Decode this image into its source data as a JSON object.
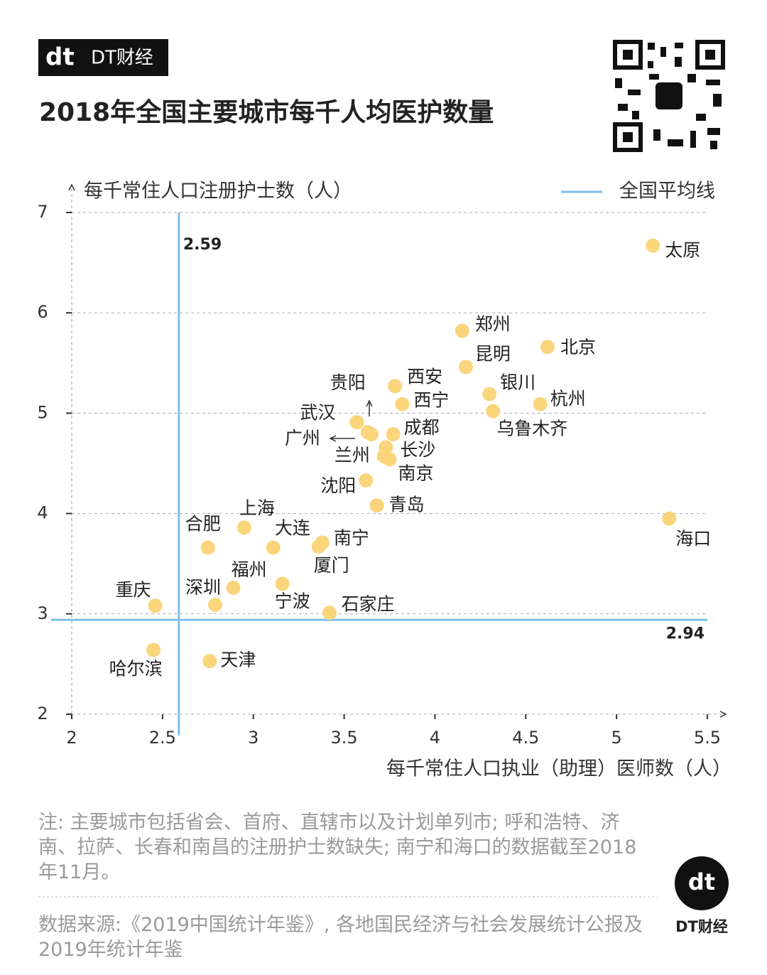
{
  "brand": {
    "mark": "dt",
    "name": "DT财经"
  },
  "chart_data": {
    "type": "scatter",
    "title": "2018年全国主要城市每千人均医护数量",
    "y_label": "每千常住人口注册护士数（人）",
    "x_label": "每千常住人口执业（助理）医师数（人）",
    "labels": [
      "太原",
      "郑州",
      "北京",
      "昆明",
      "银川",
      "杭州",
      "乌鲁木齐",
      "西安",
      "西宁",
      "武汉",
      "贵阳",
      "广州",
      "成都",
      "长沙",
      "兰州",
      "南京",
      "沈阳",
      "青岛",
      "上海",
      "合肥",
      "大连",
      "南宁",
      "厦门",
      "福州",
      "深圳",
      "宁波",
      "重庆",
      "石家庄",
      "哈尔滨",
      "天津",
      "海口"
    ],
    "x": [
      5.2,
      4.15,
      4.62,
      4.17,
      4.3,
      4.58,
      4.32,
      3.78,
      3.82,
      3.57,
      3.63,
      3.65,
      3.77,
      3.73,
      3.72,
      3.75,
      3.62,
      3.68,
      2.95,
      2.75,
      3.11,
      3.38,
      3.36,
      2.89,
      2.79,
      3.16,
      2.46,
      3.42,
      2.45,
      2.76,
      5.29
    ],
    "values": [
      6.67,
      5.82,
      5.66,
      5.46,
      5.19,
      5.09,
      5.02,
      5.27,
      5.09,
      4.91,
      4.81,
      4.79,
      4.79,
      4.66,
      4.57,
      4.54,
      4.33,
      4.08,
      3.86,
      3.66,
      3.66,
      3.71,
      3.67,
      3.26,
      3.09,
      3.3,
      3.08,
      3.01,
      2.64,
      2.53,
      3.95
    ],
    "color": "#fad57b",
    "xlim": [
      2,
      5.5
    ],
    "xticks": [
      2,
      2.5,
      3,
      3.5,
      4,
      4.5,
      5,
      5.5
    ],
    "ylim": [
      2,
      7
    ],
    "yticks": [
      2,
      3,
      4,
      5,
      6,
      7
    ],
    "grid": true,
    "reference": {
      "name": "全国平均线",
      "color": "#7cc0ea",
      "x": 2.59,
      "y": 2.94
    }
  },
  "notes": "注: 主要城市包括省会、首府、直辖市以及计划单列市; 呼和浩特、济南、拉萨、长春和南昌的注册护士数缺失; 南宁和海口的数据截至2018年11月。",
  "source": "数据来源:《2019中国统计年鉴》, 各地国民经济与社会发展统计公报及2019年统计年鉴"
}
